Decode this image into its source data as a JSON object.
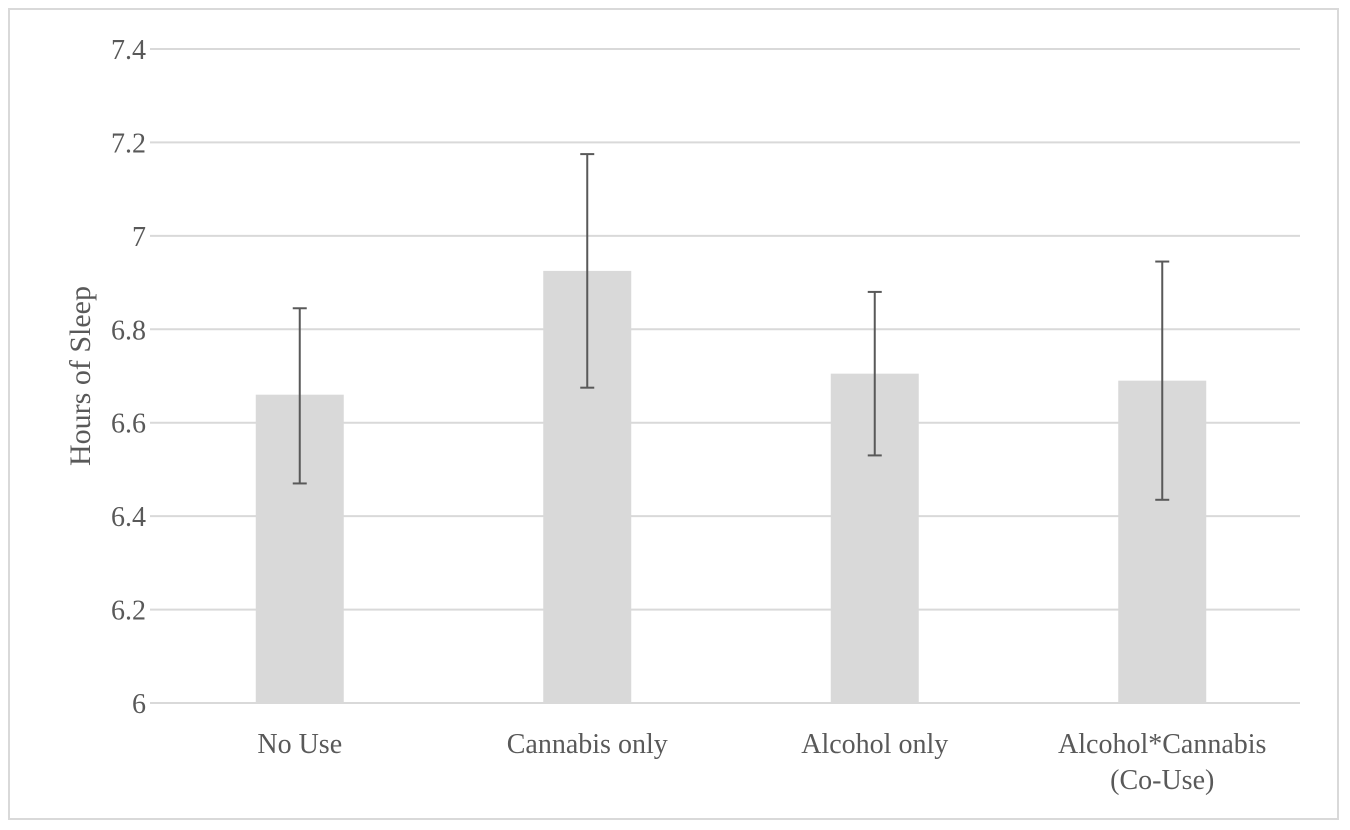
{
  "chart_data": {
    "type": "bar",
    "title": "",
    "xlabel": "",
    "ylabel": "Hours of Sleep",
    "ylim": [
      6,
      7.4
    ],
    "yticks": [
      6,
      6.2,
      6.4,
      6.6,
      6.8,
      7,
      7.2,
      7.4
    ],
    "ytick_labels": [
      "6",
      "6.2",
      "6.4",
      "6.6",
      "6.8",
      "7",
      "7.2",
      "7.4"
    ],
    "grid": true,
    "categories": [
      [
        "No Use"
      ],
      [
        "Cannabis only"
      ],
      [
        "Alcohol only"
      ],
      [
        "Alcohol*Cannabis",
        "(Co-Use)"
      ]
    ],
    "values": [
      6.66,
      6.925,
      6.705,
      6.69
    ],
    "error_low": [
      6.47,
      6.675,
      6.53,
      6.435
    ],
    "error_high": [
      6.845,
      7.175,
      6.88,
      6.945
    ],
    "colors": {
      "bar": "#d9d9d9",
      "gridline": "#d9d9d9",
      "error_bar": "#595959",
      "text": "#595959"
    }
  }
}
